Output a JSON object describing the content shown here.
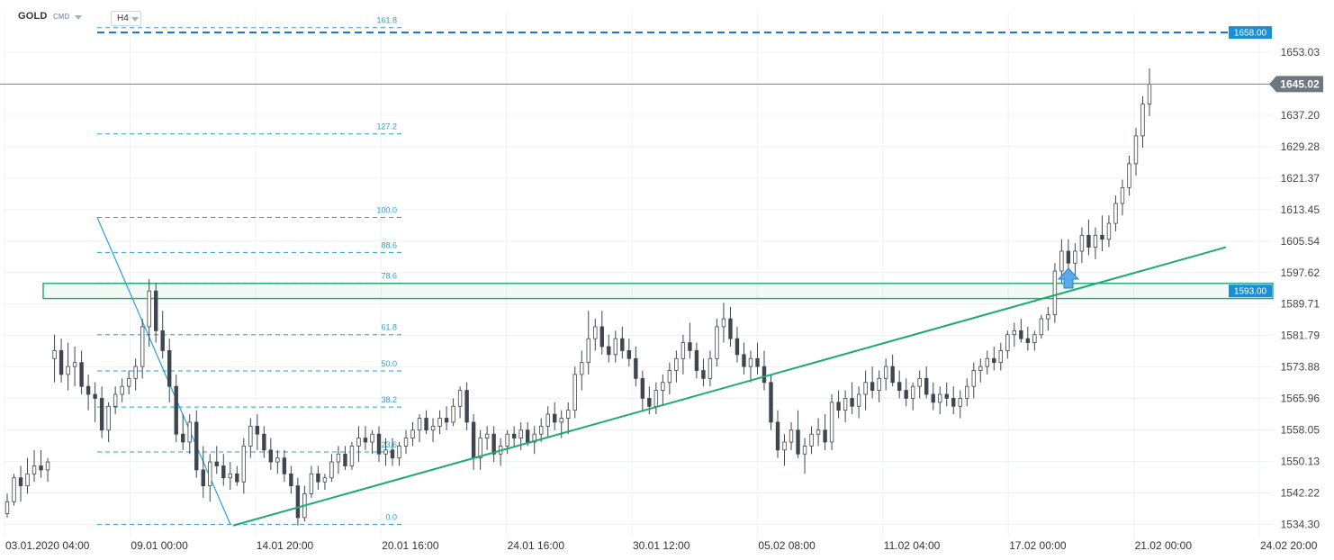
{
  "header": {
    "symbol": "GOLD",
    "instrument_type": "CMD",
    "timeframe": "H4"
  },
  "colors": {
    "bull_candle": "#ffffff",
    "bear_candle": "#3f4650",
    "fib_line": "#2a9fd6",
    "trendline": "#1eaa6e",
    "zone": "#1eaa6e",
    "level_line": "#1a6fc2",
    "price_tag": "#6f7780",
    "arrow": "#5aa9e8"
  },
  "chart_data": {
    "type": "candlestick",
    "title": "GOLD",
    "ylim": [
      1531.0,
      1663.0
    ],
    "y_ticks": [
      "1653.03",
      "1645.02",
      "1637.20",
      "1629.28",
      "1621.37",
      "1613.45",
      "1605.54",
      "1597.62",
      "1589.71",
      "1581.79",
      "1573.88",
      "1565.96",
      "1558.05",
      "1550.13",
      "1542.22",
      "1534.30"
    ],
    "x_ticks": [
      "03.01.2020  04:00",
      "09.01  00:00",
      "14.01  20:00",
      "20.01  16:00",
      "24.01  16:00",
      "30.01  12:00",
      "05.02  08:00",
      "11.02  04:00",
      "17.02  00:00",
      "21.02  00:00",
      "24.02  20:00"
    ],
    "current_price": "1645.02",
    "horizontal_level": {
      "label": "1658.00",
      "value": 1658.0
    },
    "zone": {
      "label": "1593.00",
      "low": 1592.0,
      "high": 1594.0
    },
    "fibonacci": {
      "start_price": 1534.3,
      "end_price": 1611.5,
      "levels": [
        "0.0",
        "23.6",
        "38.2",
        "50.0",
        "61.8",
        "78.6",
        "88.6",
        "100.0",
        "127.2",
        "161.8"
      ]
    },
    "trendline": {
      "start": [
        "14.01",
        1534.0
      ],
      "end": [
        "24.02",
        1604.0
      ]
    },
    "candles": [
      [
        1537,
        1542,
        1536,
        1540
      ],
      [
        1540,
        1547,
        1539,
        1546
      ],
      [
        1546,
        1549,
        1540,
        1544
      ],
      [
        1544,
        1551,
        1542,
        1547
      ],
      [
        1547,
        1553,
        1545,
        1549
      ],
      [
        1549,
        1553,
        1546,
        1548
      ],
      [
        1548,
        1551,
        1545,
        1550
      ],
      [
        1576,
        1582,
        1570,
        1578
      ],
      [
        1578,
        1581,
        1570,
        1572
      ],
      [
        1572,
        1580,
        1568,
        1574
      ],
      [
        1574,
        1579,
        1569,
        1575
      ],
      [
        1575,
        1578,
        1567,
        1569
      ],
      [
        1569,
        1572,
        1563,
        1567
      ],
      [
        1567,
        1570,
        1560,
        1566
      ],
      [
        1566,
        1569,
        1556,
        1558
      ],
      [
        1558,
        1565,
        1555,
        1564
      ],
      [
        1564,
        1569,
        1562,
        1567
      ],
      [
        1567,
        1571,
        1565,
        1569
      ],
      [
        1569,
        1573,
        1567,
        1571
      ],
      [
        1571,
        1576,
        1568,
        1574
      ],
      [
        1574,
        1586,
        1571,
        1584
      ],
      [
        1584,
        1596,
        1579,
        1593
      ],
      [
        1593,
        1595,
        1580,
        1583
      ],
      [
        1583,
        1588,
        1576,
        1578
      ],
      [
        1578,
        1581,
        1565,
        1569
      ],
      [
        1569,
        1572,
        1555,
        1557
      ],
      [
        1557,
        1562,
        1553,
        1555
      ],
      [
        1555,
        1562,
        1552,
        1560
      ],
      [
        1560,
        1563,
        1546,
        1548
      ],
      [
        1548,
        1554,
        1541,
        1544
      ],
      [
        1544,
        1552,
        1540,
        1550
      ],
      [
        1550,
        1554,
        1547,
        1549
      ],
      [
        1549,
        1552,
        1544,
        1546
      ],
      [
        1546,
        1550,
        1543,
        1547
      ],
      [
        1547,
        1549,
        1544,
        1545
      ],
      [
        1545,
        1556,
        1542,
        1554
      ],
      [
        1554,
        1561,
        1551,
        1559
      ],
      [
        1559,
        1562,
        1553,
        1557
      ],
      [
        1557,
        1559,
        1551,
        1553
      ],
      [
        1553,
        1556,
        1548,
        1550
      ],
      [
        1550,
        1553,
        1547,
        1551
      ],
      [
        1551,
        1553,
        1545,
        1547
      ],
      [
        1547,
        1549,
        1542,
        1544
      ],
      [
        1544,
        1546,
        1534,
        1536
      ],
      [
        1536,
        1544,
        1535,
        1542
      ],
      [
        1542,
        1549,
        1541,
        1547
      ],
      [
        1547,
        1549,
        1543,
        1545
      ],
      [
        1545,
        1547,
        1543,
        1546
      ],
      [
        1546,
        1552,
        1545,
        1550
      ],
      [
        1550,
        1554,
        1547,
        1552
      ],
      [
        1552,
        1554,
        1548,
        1549
      ],
      [
        1549,
        1555,
        1548,
        1554
      ],
      [
        1554,
        1559,
        1550,
        1556
      ],
      [
        1556,
        1559,
        1553,
        1555
      ],
      [
        1555,
        1558,
        1552,
        1557
      ],
      [
        1557,
        1559,
        1550,
        1552
      ],
      [
        1552,
        1556,
        1549,
        1553
      ],
      [
        1553,
        1556,
        1549,
        1551
      ],
      [
        1551,
        1555,
        1549,
        1554
      ],
      [
        1554,
        1558,
        1552,
        1556
      ],
      [
        1556,
        1560,
        1554,
        1558
      ],
      [
        1558,
        1562,
        1555,
        1561
      ],
      [
        1561,
        1563,
        1557,
        1558
      ],
      [
        1558,
        1561,
        1555,
        1559
      ],
      [
        1559,
        1563,
        1557,
        1561
      ],
      [
        1561,
        1564,
        1558,
        1560
      ],
      [
        1560,
        1566,
        1559,
        1564
      ],
      [
        1564,
        1569,
        1561,
        1568
      ],
      [
        1568,
        1570,
        1558,
        1560
      ],
      [
        1560,
        1562,
        1548,
        1551
      ],
      [
        1551,
        1558,
        1548,
        1556
      ],
      [
        1556,
        1559,
        1553,
        1557
      ],
      [
        1557,
        1559,
        1550,
        1552
      ],
      [
        1552,
        1556,
        1549,
        1554
      ],
      [
        1554,
        1558,
        1552,
        1557
      ],
      [
        1557,
        1559,
        1554,
        1556
      ],
      [
        1556,
        1560,
        1553,
        1558
      ],
      [
        1558,
        1560,
        1554,
        1555
      ],
      [
        1555,
        1559,
        1552,
        1557
      ],
      [
        1557,
        1561,
        1555,
        1559
      ],
      [
        1559,
        1564,
        1556,
        1562
      ],
      [
        1562,
        1565,
        1558,
        1560
      ],
      [
        1560,
        1563,
        1556,
        1561
      ],
      [
        1561,
        1565,
        1557,
        1563
      ],
      [
        1563,
        1574,
        1561,
        1572
      ],
      [
        1572,
        1578,
        1568,
        1575
      ],
      [
        1575,
        1588,
        1572,
        1581
      ],
      [
        1581,
        1586,
        1578,
        1584
      ],
      [
        1584,
        1588,
        1577,
        1579
      ],
      [
        1579,
        1582,
        1575,
        1577
      ],
      [
        1577,
        1583,
        1575,
        1581
      ],
      [
        1581,
        1584,
        1576,
        1578
      ],
      [
        1578,
        1581,
        1574,
        1576
      ],
      [
        1576,
        1579,
        1569,
        1571
      ],
      [
        1571,
        1573,
        1563,
        1566
      ],
      [
        1566,
        1569,
        1562,
        1564
      ],
      [
        1564,
        1570,
        1562,
        1568
      ],
      [
        1568,
        1572,
        1564,
        1570
      ],
      [
        1570,
        1575,
        1567,
        1573
      ],
      [
        1573,
        1578,
        1570,
        1576
      ],
      [
        1576,
        1582,
        1572,
        1580
      ],
      [
        1580,
        1585,
        1576,
        1578
      ],
      [
        1578,
        1580,
        1571,
        1573
      ],
      [
        1573,
        1576,
        1569,
        1571
      ],
      [
        1571,
        1578,
        1569,
        1576
      ],
      [
        1576,
        1586,
        1574,
        1584
      ],
      [
        1584,
        1590,
        1580,
        1586
      ],
      [
        1586,
        1589,
        1579,
        1581
      ],
      [
        1581,
        1584,
        1575,
        1577
      ],
      [
        1577,
        1580,
        1572,
        1574
      ],
      [
        1574,
        1578,
        1570,
        1576
      ],
      [
        1576,
        1580,
        1572,
        1574
      ],
      [
        1574,
        1578,
        1568,
        1570
      ],
      [
        1570,
        1572,
        1558,
        1560
      ],
      [
        1560,
        1563,
        1551,
        1553
      ],
      [
        1553,
        1557,
        1549,
        1555
      ],
      [
        1555,
        1560,
        1553,
        1558
      ],
      [
        1558,
        1563,
        1551,
        1552
      ],
      [
        1552,
        1556,
        1547,
        1554
      ],
      [
        1554,
        1559,
        1552,
        1557
      ],
      [
        1557,
        1561,
        1554,
        1558
      ],
      [
        1558,
        1562,
        1553,
        1555
      ],
      [
        1555,
        1567,
        1553,
        1565
      ],
      [
        1565,
        1568,
        1561,
        1563
      ],
      [
        1563,
        1568,
        1560,
        1566
      ],
      [
        1566,
        1570,
        1562,
        1564
      ],
      [
        1564,
        1569,
        1561,
        1567
      ],
      [
        1567,
        1573,
        1563,
        1570
      ],
      [
        1570,
        1574,
        1566,
        1568
      ],
      [
        1568,
        1573,
        1565,
        1571
      ],
      [
        1571,
        1576,
        1568,
        1574
      ],
      [
        1574,
        1577,
        1569,
        1570
      ],
      [
        1570,
        1573,
        1566,
        1568
      ],
      [
        1568,
        1571,
        1564,
        1566
      ],
      [
        1566,
        1570,
        1563,
        1569
      ],
      [
        1569,
        1573,
        1566,
        1571
      ],
      [
        1571,
        1574,
        1566,
        1567
      ],
      [
        1567,
        1570,
        1563,
        1565
      ],
      [
        1565,
        1569,
        1562,
        1567
      ],
      [
        1567,
        1570,
        1564,
        1566
      ],
      [
        1566,
        1569,
        1562,
        1564
      ],
      [
        1564,
        1568,
        1561,
        1566
      ],
      [
        1566,
        1571,
        1564,
        1569
      ],
      [
        1569,
        1575,
        1566,
        1573
      ],
      [
        1573,
        1576,
        1570,
        1574
      ],
      [
        1574,
        1578,
        1572,
        1576
      ],
      [
        1576,
        1579,
        1573,
        1575
      ],
      [
        1575,
        1580,
        1573,
        1578
      ],
      [
        1578,
        1583,
        1576,
        1582
      ],
      [
        1582,
        1585,
        1579,
        1583
      ],
      [
        1583,
        1586,
        1580,
        1581
      ],
      [
        1581,
        1584,
        1578,
        1580
      ],
      [
        1580,
        1583,
        1578,
        1582
      ],
      [
        1582,
        1587,
        1581,
        1586
      ],
      [
        1586,
        1589,
        1583,
        1587
      ],
      [
        1587,
        1600,
        1585,
        1598
      ],
      [
        1598,
        1606,
        1595,
        1603
      ],
      [
        1603,
        1606,
        1598,
        1600
      ],
      [
        1600,
        1605,
        1597,
        1603
      ],
      [
        1603,
        1609,
        1600,
        1607
      ],
      [
        1607,
        1611,
        1602,
        1604
      ],
      [
        1604,
        1609,
        1601,
        1607
      ],
      [
        1607,
        1612,
        1603,
        1606
      ],
      [
        1606,
        1612,
        1604,
        1610
      ],
      [
        1610,
        1617,
        1608,
        1615
      ],
      [
        1615,
        1621,
        1612,
        1619
      ],
      [
        1619,
        1627,
        1617,
        1625
      ],
      [
        1625,
        1634,
        1622,
        1632
      ],
      [
        1632,
        1642,
        1629,
        1640
      ],
      [
        1640,
        1649,
        1637,
        1645
      ]
    ]
  }
}
